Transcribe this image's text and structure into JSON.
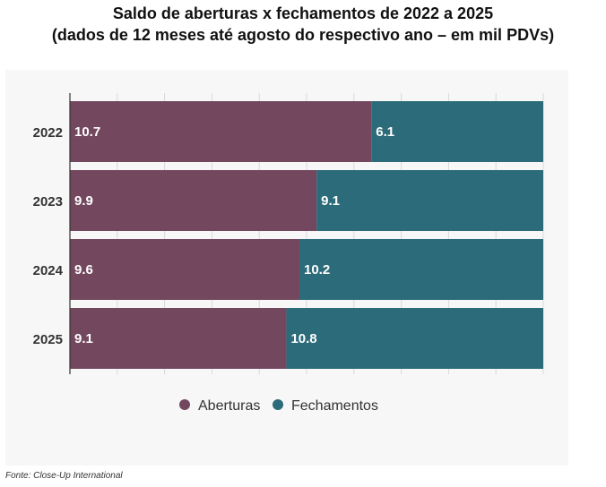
{
  "title": "Saldo de aberturas x fechamentos de 2022 a 2025",
  "subtitle": "(dados de 12 meses até agosto do respectivo ano – em mil PDVs)",
  "source": "Fonte: Close-Up International",
  "chart_data": {
    "type": "bar",
    "orientation": "horizontal",
    "stacked": true,
    "normalized": true,
    "categories": [
      "2022",
      "2023",
      "2024",
      "2025"
    ],
    "series": [
      {
        "name": "Aberturas",
        "color": "#73485f",
        "values": [
          10.7,
          9.9,
          9.6,
          9.1
        ],
        "labels": [
          "10.7",
          "9.9",
          "9.6",
          "9.1"
        ]
      },
      {
        "name": "Fechamentos",
        "color": "#2c6b79",
        "values": [
          6.1,
          9.1,
          10.2,
          10.8
        ],
        "labels": [
          "6.1",
          "9.1",
          "10.2",
          "10.8"
        ]
      }
    ],
    "legend_position": "bottom",
    "grid": true
  }
}
